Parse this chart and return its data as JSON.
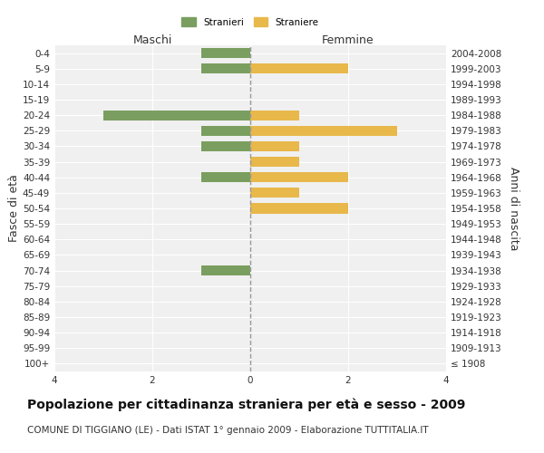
{
  "age_groups": [
    "100+",
    "95-99",
    "90-94",
    "85-89",
    "80-84",
    "75-79",
    "70-74",
    "65-69",
    "60-64",
    "55-59",
    "50-54",
    "45-49",
    "40-44",
    "35-39",
    "30-34",
    "25-29",
    "20-24",
    "15-19",
    "10-14",
    "5-9",
    "0-4"
  ],
  "birth_years": [
    "≤ 1908",
    "1909-1913",
    "1914-1918",
    "1919-1923",
    "1924-1928",
    "1929-1933",
    "1934-1938",
    "1939-1943",
    "1944-1948",
    "1949-1953",
    "1954-1958",
    "1959-1963",
    "1964-1968",
    "1969-1973",
    "1974-1978",
    "1979-1983",
    "1984-1988",
    "1989-1993",
    "1994-1998",
    "1999-2003",
    "2004-2008"
  ],
  "maschi_stranieri": [
    0,
    0,
    0,
    0,
    0,
    0,
    1,
    0,
    0,
    0,
    0,
    0,
    1,
    0,
    1,
    1,
    3,
    0,
    0,
    1,
    1
  ],
  "femmine_straniere": [
    0,
    0,
    0,
    0,
    0,
    0,
    0,
    0,
    0,
    0,
    2,
    1,
    2,
    1,
    1,
    3,
    1,
    0,
    0,
    2,
    0
  ],
  "color_maschi": "#7a9e5f",
  "color_femmine": "#e8b84b",
  "xlim": 4,
  "title": "Popolazione per cittadinanza straniera per età e sesso - 2009",
  "subtitle": "COMUNE DI TIGGIANO (LE) - Dati ISTAT 1° gennaio 2009 - Elaborazione TUTTITALIA.IT",
  "xlabel_left": "Maschi",
  "xlabel_right": "Femmine",
  "ylabel_left": "Fasce di età",
  "ylabel_right": "Anni di nascita",
  "legend_stranieri": "Stranieri",
  "legend_straniere": "Straniere",
  "bg_color": "#ffffff",
  "plot_bg_color": "#f0f0f0",
  "grid_color": "#ffffff",
  "bar_height": 0.65,
  "title_fontsize": 10,
  "subtitle_fontsize": 7.5,
  "tick_fontsize": 7.5,
  "label_fontsize": 9
}
